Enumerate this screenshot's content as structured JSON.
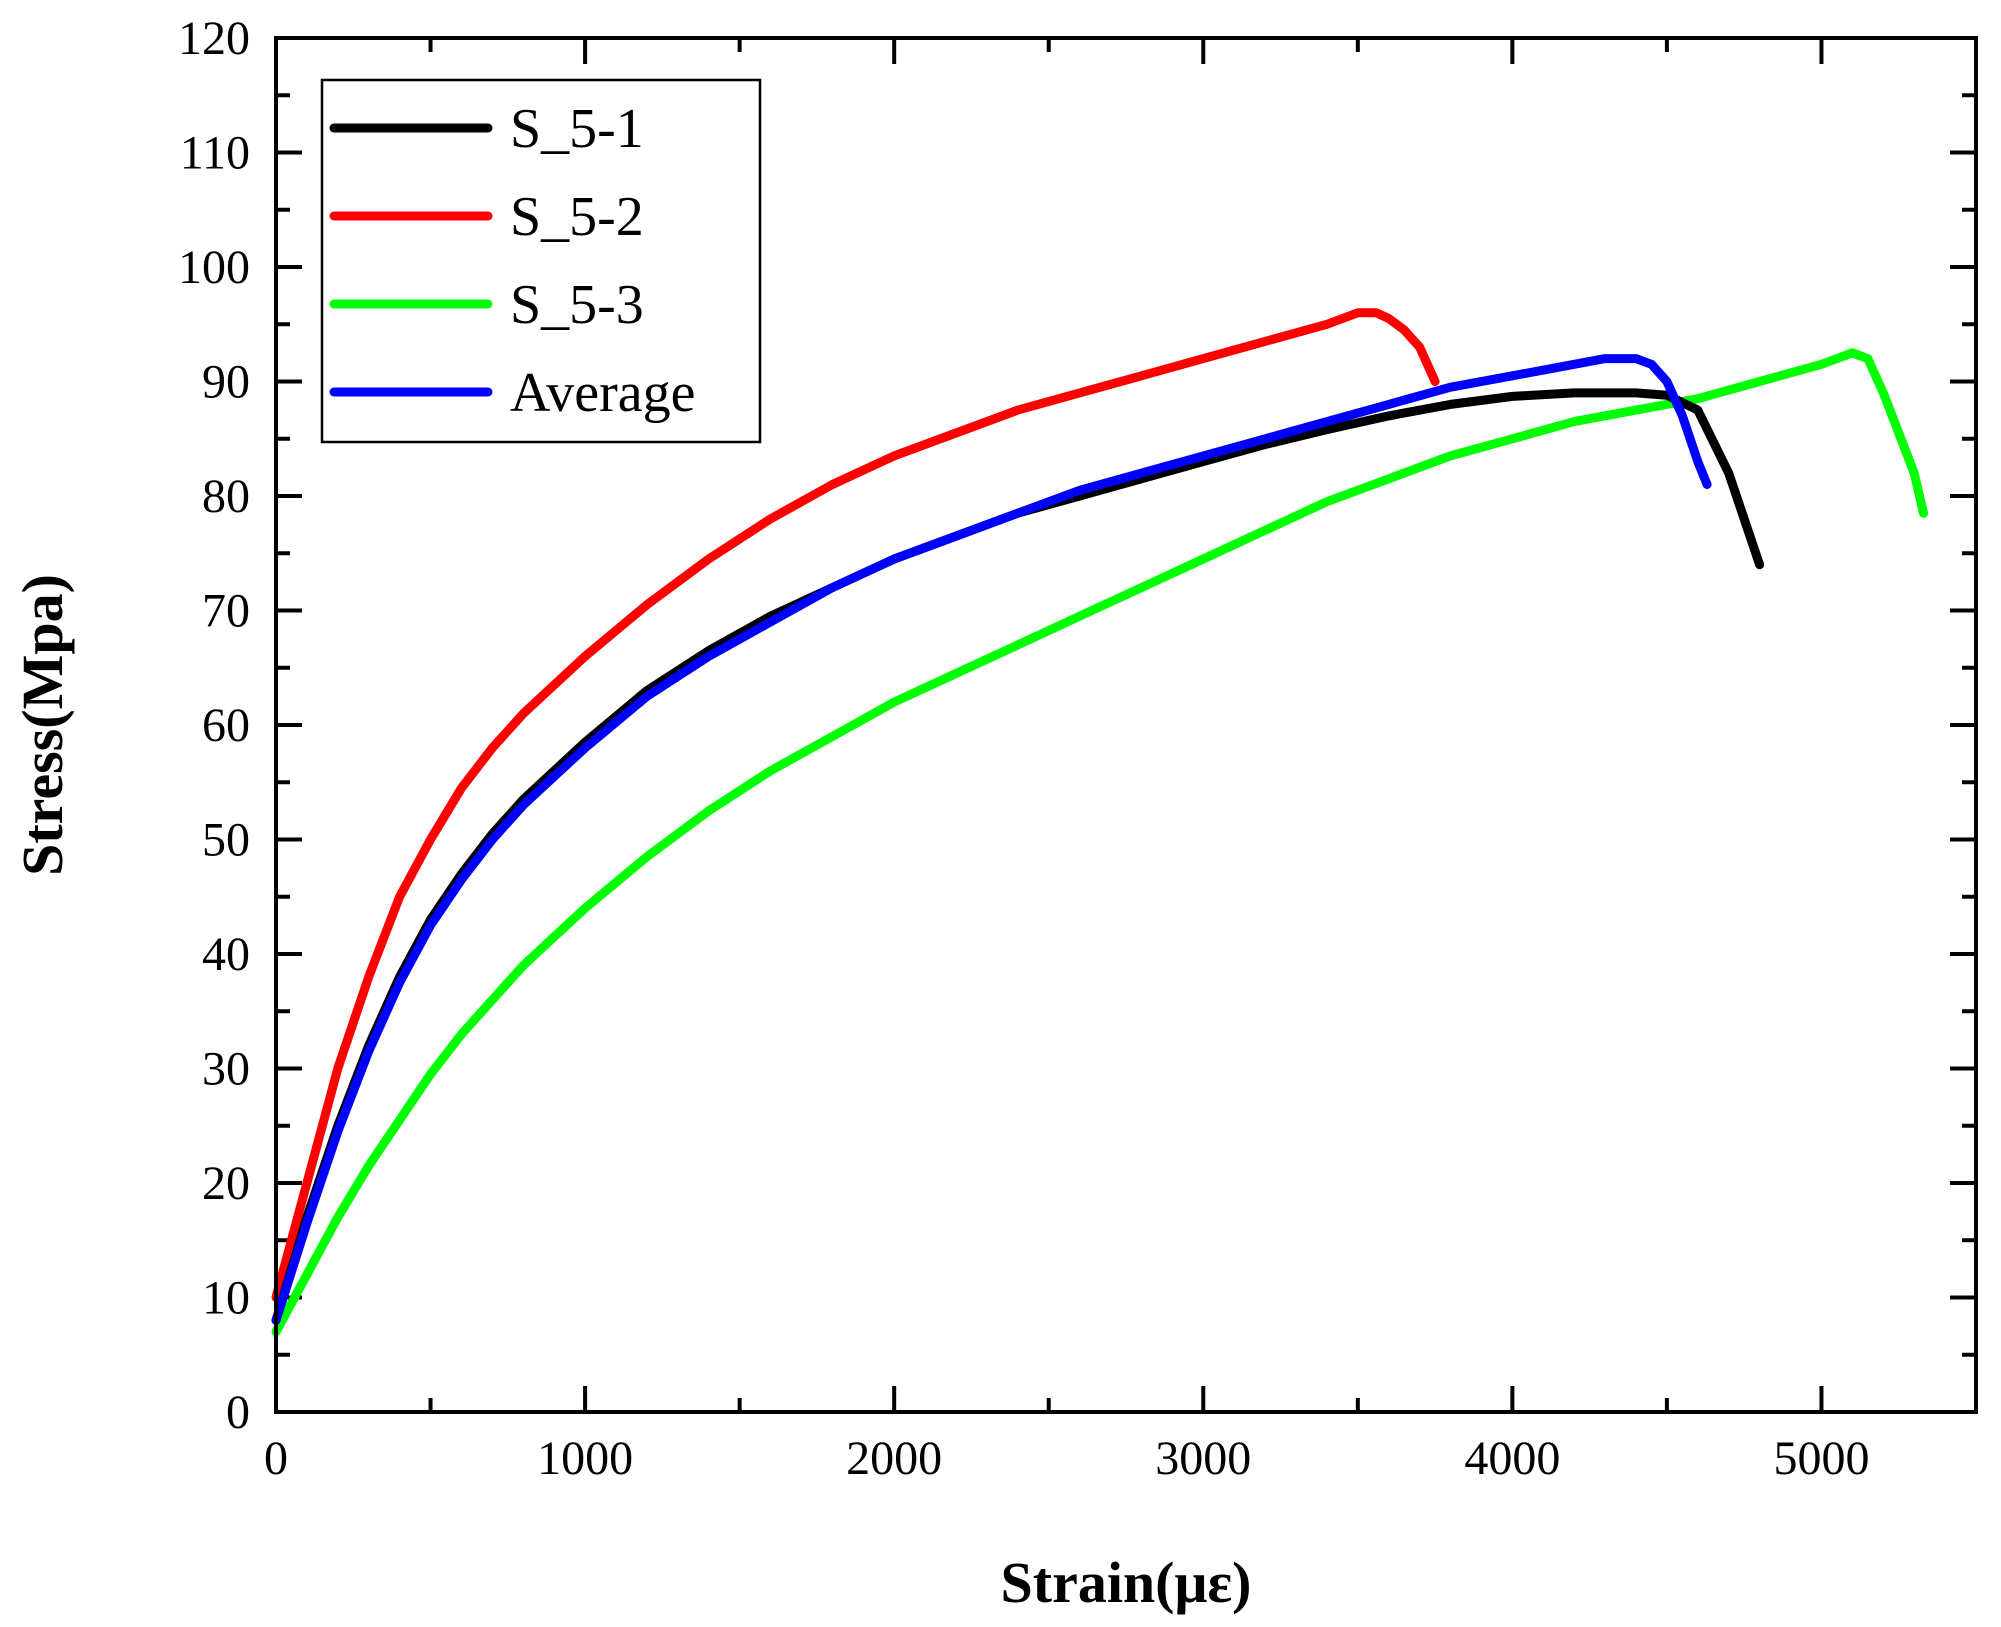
{
  "chart_data": {
    "type": "line",
    "title": "",
    "xlabel": "Strain(με)",
    "ylabel": "Stress(Mpa)",
    "xlim": [
      0,
      5500
    ],
    "ylim": [
      0,
      120
    ],
    "x_major_ticks": [
      0,
      1000,
      2000,
      3000,
      4000,
      5000
    ],
    "x_tick_labels": [
      "0",
      "1000",
      "2000",
      "3000",
      "4000",
      "5000"
    ],
    "y_major_ticks": [
      0,
      10,
      20,
      30,
      40,
      50,
      60,
      70,
      80,
      90,
      100,
      110,
      120
    ],
    "y_tick_labels": [
      "0",
      "10",
      "20",
      "30",
      "40",
      "50",
      "60",
      "70",
      "80",
      "90",
      "100",
      "110",
      "120"
    ],
    "grid": false,
    "legend_position": "top-left",
    "series": [
      {
        "name": "S_5-1",
        "color": "#000000",
        "points": [
          [
            0,
            8
          ],
          [
            100,
            17
          ],
          [
            200,
            25
          ],
          [
            300,
            32
          ],
          [
            400,
            38
          ],
          [
            500,
            43
          ],
          [
            600,
            47
          ],
          [
            700,
            50.5
          ],
          [
            800,
            53.5
          ],
          [
            900,
            56
          ],
          [
            1000,
            58.5
          ],
          [
            1200,
            63
          ],
          [
            1400,
            66.5
          ],
          [
            1600,
            69.5
          ],
          [
            1800,
            72
          ],
          [
            2000,
            74.5
          ],
          [
            2200,
            76.5
          ],
          [
            2400,
            78.5
          ],
          [
            2600,
            80
          ],
          [
            2800,
            81.5
          ],
          [
            3000,
            83
          ],
          [
            3200,
            84.5
          ],
          [
            3400,
            85.8
          ],
          [
            3600,
            87
          ],
          [
            3800,
            88
          ],
          [
            4000,
            88.7
          ],
          [
            4200,
            89
          ],
          [
            4400,
            89
          ],
          [
            4500,
            88.8
          ],
          [
            4600,
            87.5
          ],
          [
            4700,
            82
          ],
          [
            4800,
            74
          ]
        ]
      },
      {
        "name": "S_5-2",
        "color": "#ff0000",
        "points": [
          [
            0,
            10
          ],
          [
            100,
            20
          ],
          [
            200,
            30
          ],
          [
            300,
            38
          ],
          [
            400,
            45
          ],
          [
            500,
            50
          ],
          [
            600,
            54.5
          ],
          [
            700,
            58
          ],
          [
            800,
            61
          ],
          [
            900,
            63.5
          ],
          [
            1000,
            66
          ],
          [
            1200,
            70.5
          ],
          [
            1400,
            74.5
          ],
          [
            1600,
            78
          ],
          [
            1800,
            81
          ],
          [
            2000,
            83.5
          ],
          [
            2200,
            85.5
          ],
          [
            2400,
            87.5
          ],
          [
            2600,
            89
          ],
          [
            2800,
            90.5
          ],
          [
            3000,
            92
          ],
          [
            3200,
            93.5
          ],
          [
            3400,
            95
          ],
          [
            3500,
            96
          ],
          [
            3560,
            96
          ],
          [
            3600,
            95.5
          ],
          [
            3650,
            94.5
          ],
          [
            3700,
            93
          ],
          [
            3750,
            90
          ]
        ]
      },
      {
        "name": "S_5-3",
        "color": "#00ff00",
        "points": [
          [
            0,
            7
          ],
          [
            100,
            12
          ],
          [
            200,
            17
          ],
          [
            300,
            21.5
          ],
          [
            400,
            25.5
          ],
          [
            500,
            29.5
          ],
          [
            600,
            33
          ],
          [
            700,
            36
          ],
          [
            800,
            39
          ],
          [
            900,
            41.5
          ],
          [
            1000,
            44
          ],
          [
            1200,
            48.5
          ],
          [
            1400,
            52.5
          ],
          [
            1600,
            56
          ],
          [
            1800,
            59
          ],
          [
            2000,
            62
          ],
          [
            2200,
            64.5
          ],
          [
            2400,
            67
          ],
          [
            2600,
            69.5
          ],
          [
            2800,
            72
          ],
          [
            3000,
            74.5
          ],
          [
            3200,
            77
          ],
          [
            3400,
            79.5
          ],
          [
            3600,
            81.5
          ],
          [
            3800,
            83.5
          ],
          [
            4000,
            85
          ],
          [
            4200,
            86.5
          ],
          [
            4400,
            87.5
          ],
          [
            4600,
            88.5
          ],
          [
            4800,
            90
          ],
          [
            5000,
            91.5
          ],
          [
            5100,
            92.5
          ],
          [
            5150,
            92
          ],
          [
            5200,
            89
          ],
          [
            5300,
            82
          ],
          [
            5330,
            78.5
          ]
        ]
      },
      {
        "name": "Average",
        "color": "#0000ff",
        "points": [
          [
            0,
            8
          ],
          [
            100,
            16.5
          ],
          [
            200,
            24.5
          ],
          [
            300,
            31.5
          ],
          [
            400,
            37.5
          ],
          [
            500,
            42.5
          ],
          [
            600,
            46.5
          ],
          [
            700,
            50
          ],
          [
            800,
            53
          ],
          [
            900,
            55.5
          ],
          [
            1000,
            58
          ],
          [
            1200,
            62.5
          ],
          [
            1400,
            66
          ],
          [
            1600,
            69
          ],
          [
            1800,
            72
          ],
          [
            2000,
            74.5
          ],
          [
            2200,
            76.5
          ],
          [
            2400,
            78.5
          ],
          [
            2600,
            80.5
          ],
          [
            2800,
            82
          ],
          [
            3000,
            83.5
          ],
          [
            3200,
            85
          ],
          [
            3400,
            86.5
          ],
          [
            3600,
            88
          ],
          [
            3800,
            89.5
          ],
          [
            4000,
            90.5
          ],
          [
            4200,
            91.5
          ],
          [
            4300,
            92
          ],
          [
            4400,
            92
          ],
          [
            4450,
            91.5
          ],
          [
            4500,
            90
          ],
          [
            4550,
            87
          ],
          [
            4600,
            83
          ],
          [
            4630,
            81
          ]
        ]
      }
    ]
  }
}
